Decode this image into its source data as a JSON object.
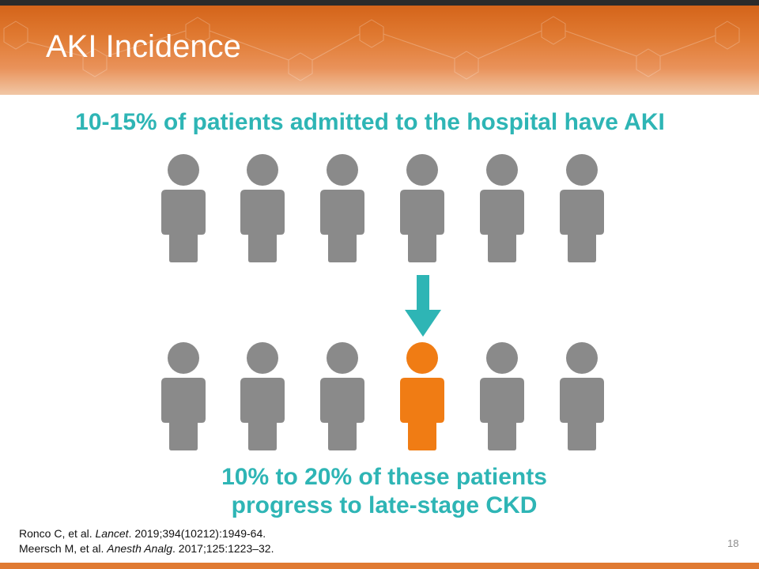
{
  "slide": {
    "title": "AKI Incidence",
    "headline": "10-15% of patients admitted to the hospital have AKI",
    "conclusion_line1": "10% to 20% of these patients",
    "conclusion_line2": "progress to late-stage CKD",
    "page_number": "18"
  },
  "references": [
    {
      "authors": "Ronco C, et al. ",
      "journal": "Lancet",
      "details": ". 2019;394(10212):1949-64."
    },
    {
      "authors": "Meersch M, et al. ",
      "journal": "Anesth Analg",
      "details": ". 2017;125:1223–32."
    }
  ],
  "people": {
    "top_row_count": 6,
    "bottom_row_count": 6,
    "highlighted_bottom_index": 3
  },
  "colors": {
    "header_orange": "#e07a32",
    "teal": "#2eb5b5",
    "person_gray": "#8a8a8a",
    "person_highlight": "#f07c14"
  },
  "icons": {
    "person": "person-icon",
    "arrow": "down-arrow-icon"
  }
}
